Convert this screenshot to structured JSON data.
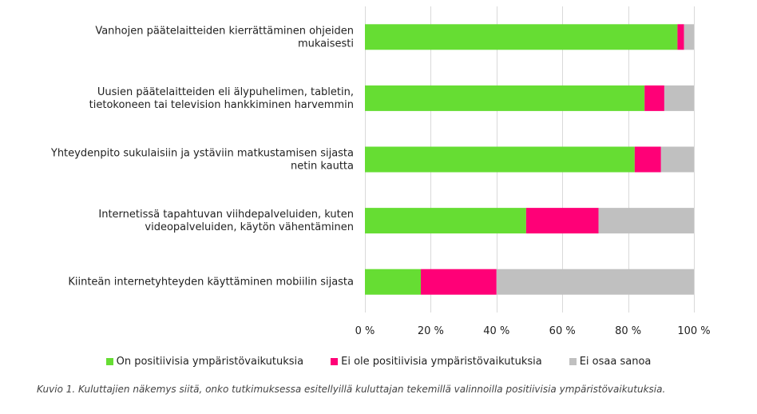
{
  "chart_data": {
    "type": "bar",
    "orientation": "horizontal",
    "stacked": true,
    "categories": [
      [
        "Vanhojen päätelaitteiden kierrättäminen ohjeiden",
        "mukaisesti"
      ],
      [
        "Uusien päätelaitteiden eli älypuhelimen, tabletin,",
        "tietokoneen tai television hankkiminen harvemmin"
      ],
      [
        "Yhteydenpito sukulaisiin ja ystäviin matkustamisen sijasta",
        "netin kautta"
      ],
      [
        "Internetissä tapahtuvan viihdepalveluiden, kuten",
        "videopalveluiden, käytön vähentäminen"
      ],
      [
        "Kiinteän internetyhteyden käyttäminen mobiilin sijasta"
      ]
    ],
    "series": [
      {
        "name": "On positiivisia ympäristövaikutuksia",
        "color": "#66dd33",
        "values": [
          95,
          85,
          82,
          49,
          17
        ]
      },
      {
        "name": "Ei ole positiivisia ympäristövaikutuksia",
        "color": "#ff0077",
        "values": [
          2,
          6,
          8,
          22,
          23
        ]
      },
      {
        "name": "Ei osaa sanoa",
        "color": "#c0c0c0",
        "values": [
          3,
          9,
          10,
          29,
          60
        ]
      }
    ],
    "xlim": [
      0,
      100
    ],
    "xticks": [
      "0 %",
      "20 %",
      "40 %",
      "60 %",
      "80 %",
      "100 %"
    ],
    "xtick_values": [
      0,
      20,
      40,
      60,
      80,
      100
    ],
    "grid": true,
    "legend_position": "bottom"
  },
  "caption": "Kuvio 1. Kuluttajien näkemys siitä, onko tutkimuksessa esitellyillä kuluttajan tekemillä valinnoilla positiivisia ympäristövaikutuksia."
}
